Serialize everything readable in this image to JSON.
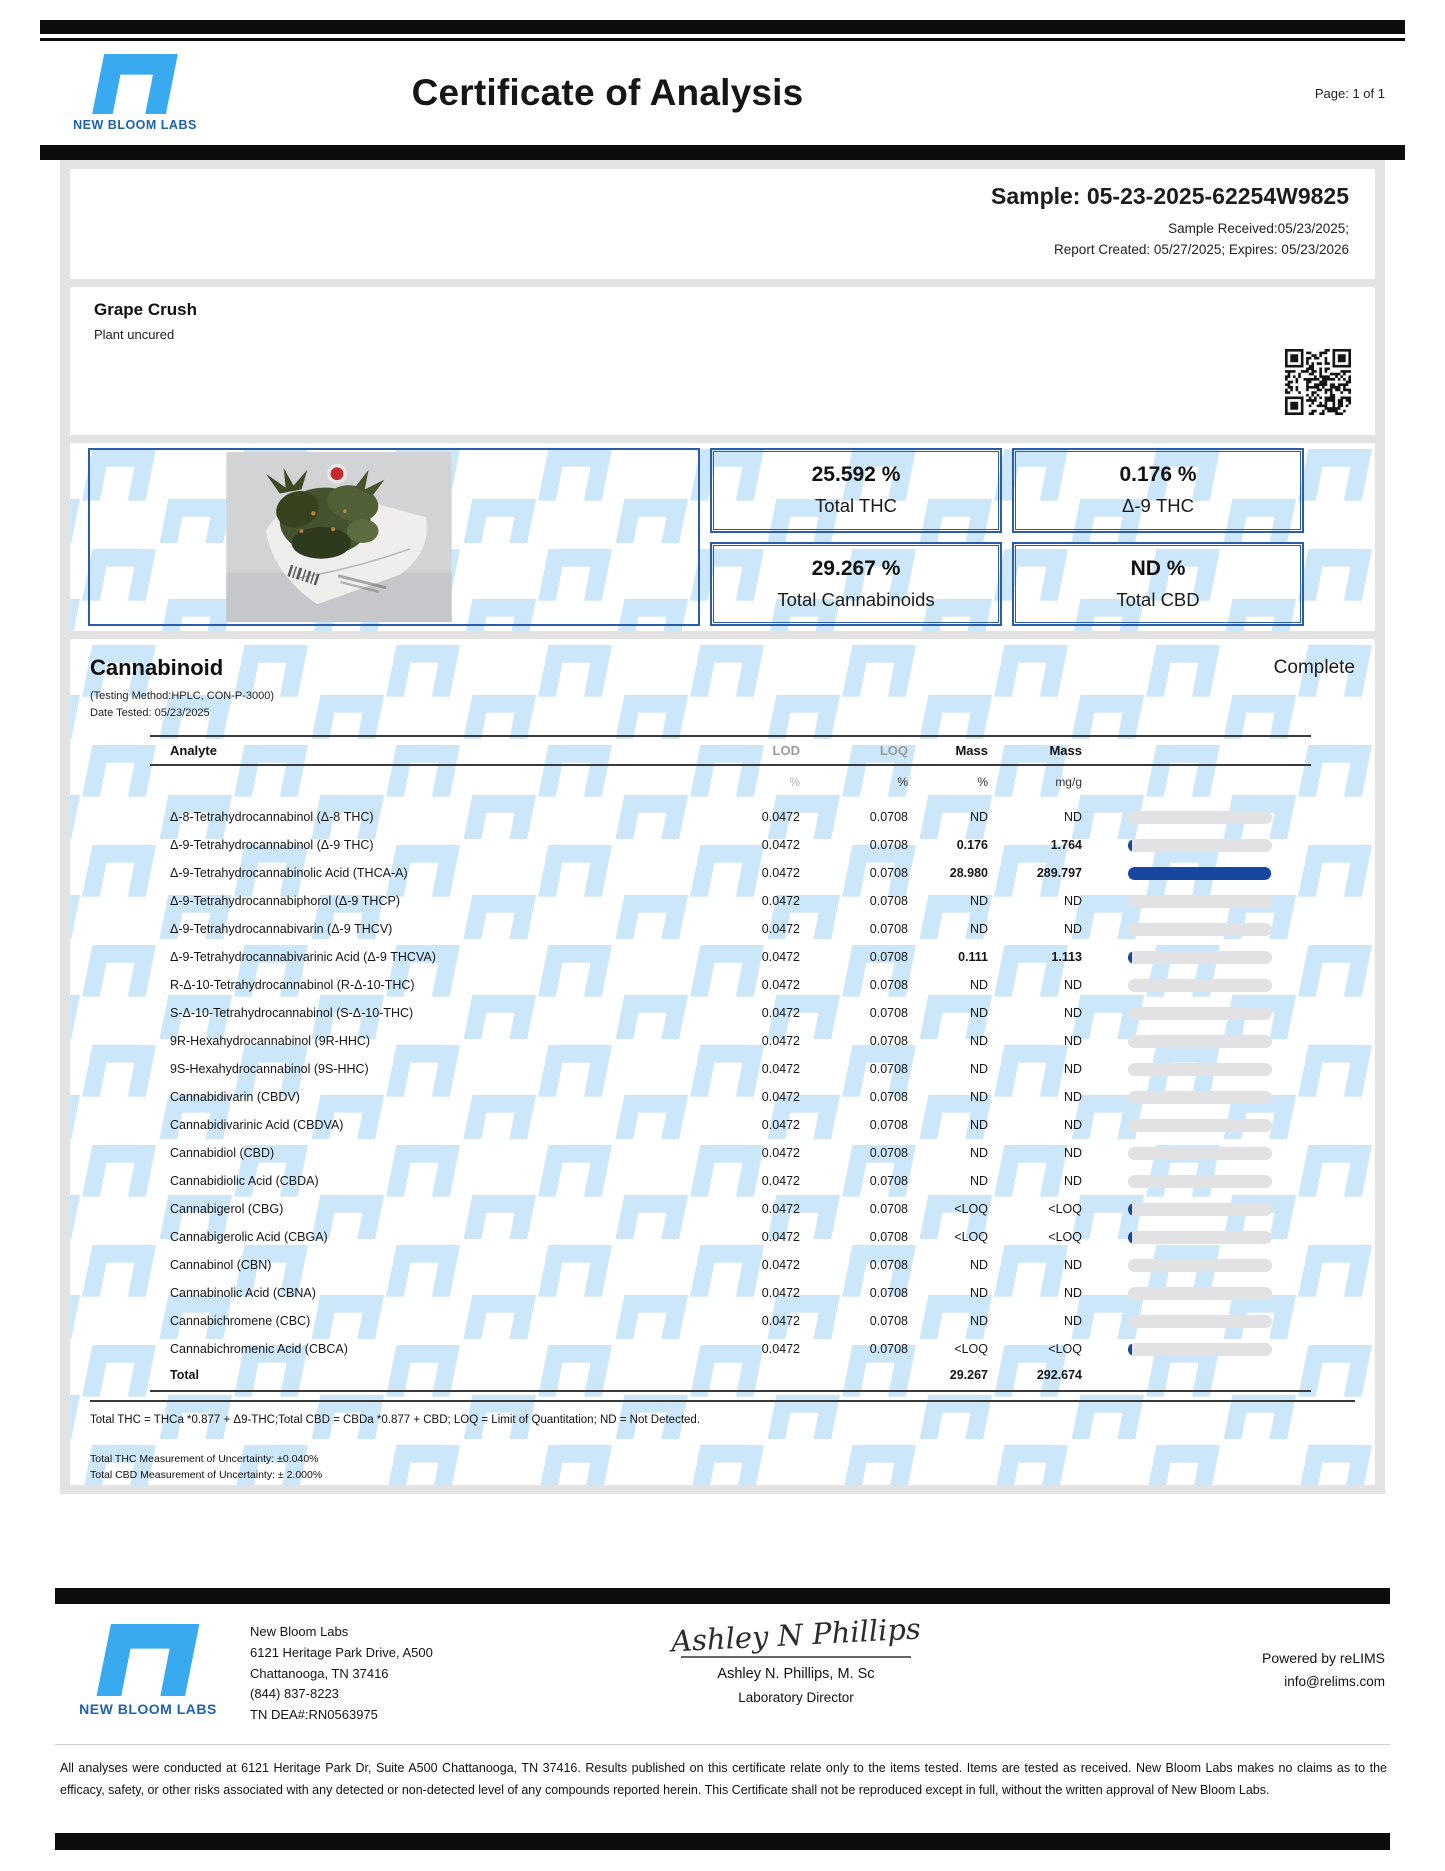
{
  "header": {
    "brand": "NEW BLOOM LABS",
    "title": "Certificate of Analysis",
    "page": "Page: 1 of 1"
  },
  "sample": {
    "id_line": "Sample: 05-23-2025-62254W9825",
    "received_line": "Sample Received:05/23/2025;",
    "created_line": "Report Created: 05/27/2025; Expires: 05/23/2026"
  },
  "product": {
    "name": "Grape Crush",
    "type": "Plant uncured"
  },
  "stats": [
    {
      "value": "25.592 %",
      "label": "Total THC"
    },
    {
      "value": "0.176 %",
      "label": "Δ-9 THC"
    },
    {
      "value": "29.267 %",
      "label": "Total Cannabinoids"
    },
    {
      "value": "ND %",
      "label": "Total CBD"
    }
  ],
  "section": {
    "title": "Cannabinoid",
    "status": "Complete",
    "method": "(Testing Method:HPLC, CON-P-3000)",
    "date_tested": "Date Tested: 05/23/2025"
  },
  "table": {
    "headers": [
      "Analyte",
      "LOD",
      "LOQ",
      "Mass",
      "Mass"
    ],
    "units": [
      "",
      "%",
      "%",
      "%",
      "mg/g"
    ],
    "rows": [
      {
        "analyte": "Δ-8-Tetrahydrocannabinol (Δ-8 THC)",
        "lod": "0.0472",
        "loq": "0.0708",
        "mass_pct": "ND",
        "mass_mgg": "ND"
      },
      {
        "analyte": "Δ-9-Tetrahydrocannabinol (Δ-9 THC)",
        "lod": "0.0472",
        "loq": "0.0708",
        "mass_pct": "0.176",
        "mass_mgg": "1.764"
      },
      {
        "analyte": "Δ-9-Tetrahydrocannabinolic Acid (THCA-A)",
        "lod": "0.0472",
        "loq": "0.0708",
        "mass_pct": "28.980",
        "mass_mgg": "289.797"
      },
      {
        "analyte": "Δ-9-Tetrahydrocannabiphorol (Δ-9 THCP)",
        "lod": "0.0472",
        "loq": "0.0708",
        "mass_pct": "ND",
        "mass_mgg": "ND"
      },
      {
        "analyte": "Δ-9-Tetrahydrocannabivarin (Δ-9 THCV)",
        "lod": "0.0472",
        "loq": "0.0708",
        "mass_pct": "ND",
        "mass_mgg": "ND"
      },
      {
        "analyte": "Δ-9-Tetrahydrocannabivarinic Acid (Δ-9 THCVA)",
        "lod": "0.0472",
        "loq": "0.0708",
        "mass_pct": "0.111",
        "mass_mgg": "1.113"
      },
      {
        "analyte": "R-Δ-10-Tetrahydrocannabinol (R-Δ-10-THC)",
        "lod": "0.0472",
        "loq": "0.0708",
        "mass_pct": "ND",
        "mass_mgg": "ND"
      },
      {
        "analyte": "S-Δ-10-Tetrahydrocannabinol (S-Δ-10-THC)",
        "lod": "0.0472",
        "loq": "0.0708",
        "mass_pct": "ND",
        "mass_mgg": "ND"
      },
      {
        "analyte": "9R-Hexahydrocannabinol (9R-HHC)",
        "lod": "0.0472",
        "loq": "0.0708",
        "mass_pct": "ND",
        "mass_mgg": "ND"
      },
      {
        "analyte": "9S-Hexahydrocannabinol (9S-HHC)",
        "lod": "0.0472",
        "loq": "0.0708",
        "mass_pct": "ND",
        "mass_mgg": "ND"
      },
      {
        "analyte": "Cannabidivarin (CBDV)",
        "lod": "0.0472",
        "loq": "0.0708",
        "mass_pct": "ND",
        "mass_mgg": "ND"
      },
      {
        "analyte": "Cannabidivarinic Acid (CBDVA)",
        "lod": "0.0472",
        "loq": "0.0708",
        "mass_pct": "ND",
        "mass_mgg": "ND"
      },
      {
        "analyte": "Cannabidiol (CBD)",
        "lod": "0.0472",
        "loq": "0.0708",
        "mass_pct": "ND",
        "mass_mgg": "ND"
      },
      {
        "analyte": "Cannabidiolic Acid (CBDA)",
        "lod": "0.0472",
        "loq": "0.0708",
        "mass_pct": "ND",
        "mass_mgg": "ND"
      },
      {
        "analyte": "Cannabigerol (CBG)",
        "lod": "0.0472",
        "loq": "0.0708",
        "mass_pct": "<LOQ",
        "mass_mgg": "<LOQ"
      },
      {
        "analyte": "Cannabigerolic Acid (CBGA)",
        "lod": "0.0472",
        "loq": "0.0708",
        "mass_pct": "<LOQ",
        "mass_mgg": "<LOQ"
      },
      {
        "analyte": "Cannabinol (CBN)",
        "lod": "0.0472",
        "loq": "0.0708",
        "mass_pct": "ND",
        "mass_mgg": "ND"
      },
      {
        "analyte": "Cannabinolic Acid (CBNA)",
        "lod": "0.0472",
        "loq": "0.0708",
        "mass_pct": "ND",
        "mass_mgg": "ND"
      },
      {
        "analyte": "Cannabichromene (CBC)",
        "lod": "0.0472",
        "loq": "0.0708",
        "mass_pct": "ND",
        "mass_mgg": "ND"
      },
      {
        "analyte": "Cannabichromenic Acid (CBCA)",
        "lod": "0.0472",
        "loq": "0.0708",
        "mass_pct": "<LOQ",
        "mass_mgg": "<LOQ"
      }
    ],
    "total": {
      "label": "Total",
      "mass_pct": "29.267",
      "mass_mgg": "292.674"
    }
  },
  "footnotes": {
    "formula": "Total THC = THCa *0.877 + Δ9-THC;Total CBD = CBDa *0.877 + CBD; LOQ = Limit of Quantitation; ND = Not Detected.",
    "thc_uncertainty": "Total THC Measurement of Uncertainty: ±0.040%",
    "cbd_uncertainty": "Total CBD Measurement of Uncertainty: ± 2.000%"
  },
  "footer": {
    "brand": "NEW BLOOM LABS",
    "address_lines": [
      "New Bloom Labs",
      "6121 Heritage Park Drive, A500",
      "Chattanooga, TN 37416",
      "(844) 837-8223",
      "TN DEA#:RN0563975"
    ],
    "signature_script": "Ashley N Phillips",
    "signer_name": "Ashley N. Phillips, M. Sc",
    "signer_title": "Laboratory Director",
    "powered_by": "Powered by reLIMS",
    "contact_email": "info@relims.com",
    "disclaimer": "All analyses were conducted at 6121 Heritage Park Dr, Suite A500 Chattanooga, TN 37416. Results published on this certificate relate only to the items tested. Items are tested as received. New Bloom Labs makes no claims as to the efficacy, safety, or other risks associated with any detected or non-detected level of any compounds reported herein. This Certificate shall not be reproduced except in full, without the written approval of New Bloom Labs."
  },
  "colors": {
    "logo_blue": "#39a9f0",
    "brand_text_blue": "#1f62ad",
    "box_border_blue": "#2b5ca8",
    "bar_fill_blue": "#17469e",
    "watermark_blue": "#cde7fa"
  }
}
